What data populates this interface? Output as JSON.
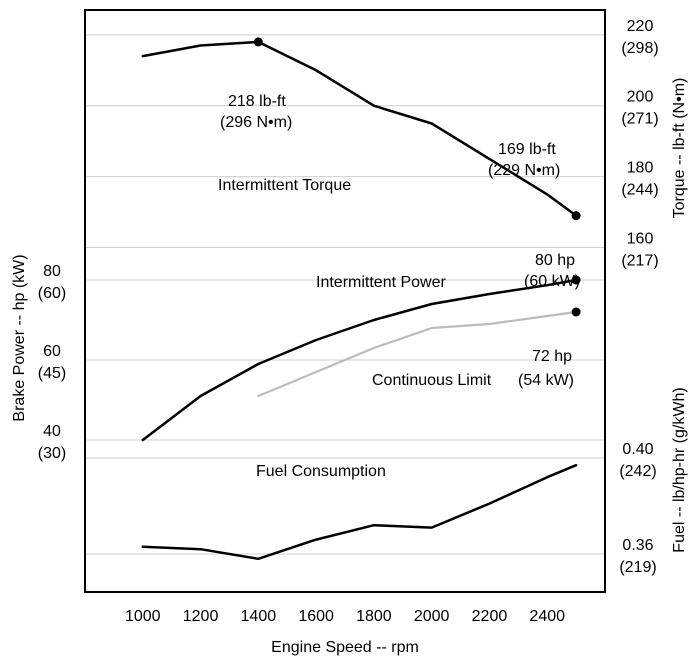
{
  "chart_data": {
    "type": "line",
    "xlabel": "Engine Speed -- rpm",
    "xlim": [
      800,
      2600
    ],
    "x_ticks": [
      "1000",
      "1200",
      "1400",
      "1600",
      "1800",
      "2000",
      "2200",
      "2400"
    ],
    "x_tick_values": [
      1000,
      1200,
      1400,
      1600,
      1800,
      2000,
      2200,
      2400
    ],
    "grid": "horizontal",
    "axes": {
      "torque": {
        "label": "Torque -- lb-ft (N•m)",
        "side": "right",
        "lim": [
          150,
          227
        ],
        "ticks": [
          {
            "value": 220,
            "line1": "220",
            "line2": "(298)"
          },
          {
            "value": 200,
            "line1": "200",
            "line2": "(271)"
          },
          {
            "value": 180,
            "line1": "180",
            "line2": "(244)"
          },
          {
            "value": 160,
            "line1": "160",
            "line2": "(217)"
          }
        ]
      },
      "power": {
        "label": "Brake Power -- hp (kW)",
        "side": "left",
        "lim": [
          30,
          90
        ],
        "ticks": [
          {
            "value": 80,
            "line1": "80",
            "line2": "(60)"
          },
          {
            "value": 60,
            "line1": "60",
            "line2": "(45)"
          },
          {
            "value": 40,
            "line1": "40",
            "line2": "(30)"
          }
        ]
      },
      "fuel": {
        "label": "Fuel -- lb/hp-hr (g/kWh)",
        "side": "right",
        "lim": [
          0.32,
          0.44
        ],
        "ticks": [
          {
            "value": 0.4,
            "line1": "0.40",
            "line2": "(242)"
          },
          {
            "value": 0.36,
            "line1": "0.36",
            "line2": "(219)"
          }
        ]
      }
    },
    "series": [
      {
        "name": "Intermittent Torque",
        "axis": "torque",
        "color": "#000000",
        "x": [
          1000,
          1200,
          1400,
          1600,
          1800,
          2000,
          2200,
          2400,
          2500
        ],
        "y": [
          214,
          217,
          218,
          210,
          200,
          195,
          185,
          175,
          169
        ],
        "marker_x": [
          1400,
          2500
        ]
      },
      {
        "name": "Intermittent Power",
        "axis": "power",
        "color": "#000000",
        "x": [
          1000,
          1200,
          1400,
          1600,
          1800,
          2000,
          2200,
          2400,
          2500
        ],
        "y": [
          40,
          51,
          59,
          65,
          70,
          74,
          76.5,
          78.7,
          80
        ],
        "marker_x": [
          2500
        ]
      },
      {
        "name": "Continuous Limit",
        "axis": "power",
        "color": "#bbbbbb",
        "x": [
          1400,
          1600,
          1800,
          2000,
          2200,
          2400,
          2500
        ],
        "y": [
          51,
          57,
          63,
          68,
          69,
          71,
          72
        ],
        "marker_x": [
          2500
        ]
      },
      {
        "name": "Fuel Consumption",
        "axis": "fuel",
        "color": "#000000",
        "x": [
          1000,
          1200,
          1400,
          1600,
          1800,
          2000,
          2200,
          2400,
          2500
        ],
        "y": [
          0.363,
          0.362,
          0.358,
          0.366,
          0.372,
          0.371,
          0.381,
          0.392,
          0.397
        ]
      }
    ],
    "annotations": {
      "peak_torque": {
        "line1": "218 lb-ft",
        "line2": "(296 N•m)"
      },
      "rated_torque": {
        "line1": "169 lb-ft",
        "line2": "(229 N•m)"
      },
      "intermittent_torque_label": "Intermittent Torque",
      "rated_power": {
        "line1": "80 hp",
        "line2": "(60 kW)"
      },
      "intermittent_power_label": "Intermittent Power",
      "continuous_power": {
        "line1": "72 hp",
        "line2": "(54 kW)"
      },
      "continuous_limit_label": "Continuous Limit",
      "fuel_label": "Fuel Consumption"
    }
  }
}
